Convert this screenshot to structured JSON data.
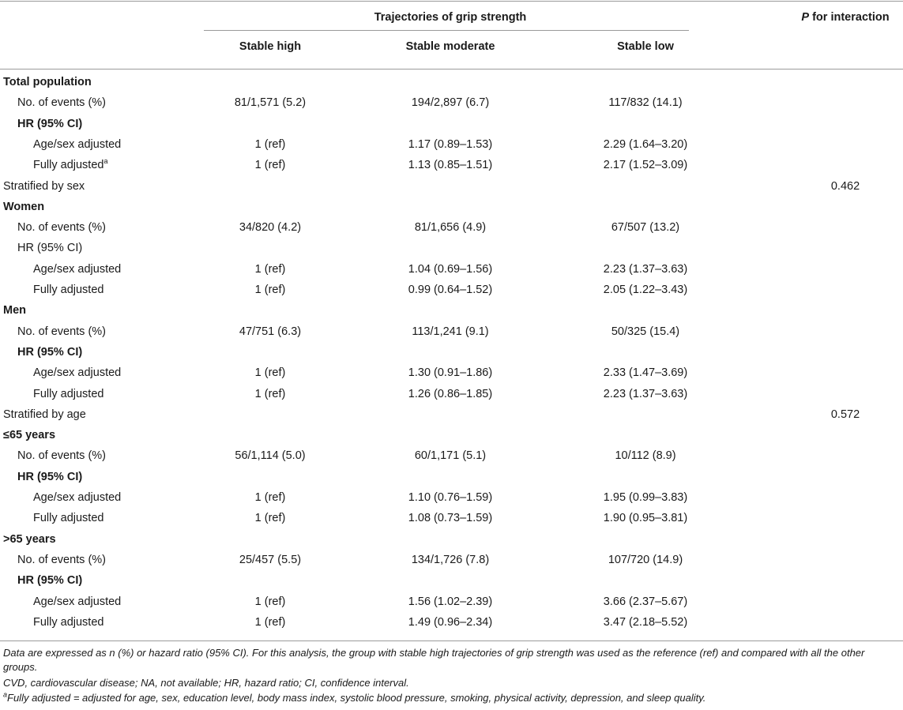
{
  "header": {
    "group_title": "Trajectories of grip strength",
    "p_interaction": "P for interaction",
    "columns": [
      "Stable high",
      "Stable moderate",
      "Stable low"
    ]
  },
  "rows": [
    {
      "label": "Total population",
      "indent": 0,
      "bold": true,
      "v": [
        "",
        "",
        "",
        ""
      ]
    },
    {
      "label": "No. of events (%)",
      "indent": 1,
      "bold": false,
      "v": [
        "81/1,571 (5.2)",
        "194/2,897 (6.7)",
        "117/832 (14.1)",
        ""
      ]
    },
    {
      "label": "HR (95% CI)",
      "indent": 1,
      "bold": true,
      "v": [
        "",
        "",
        "",
        ""
      ]
    },
    {
      "label": "Age/sex adjusted",
      "indent": 2,
      "bold": false,
      "v": [
        "1 (ref)",
        "1.17 (0.89–1.53)",
        "2.29 (1.64–3.20)",
        ""
      ]
    },
    {
      "label": "Fully adjusted",
      "sup": "a",
      "indent": 2,
      "bold": false,
      "v": [
        "1 (ref)",
        "1.13 (0.85–1.51)",
        "2.17 (1.52–3.09)",
        ""
      ]
    },
    {
      "label": "Stratified by sex",
      "indent": 0,
      "bold": false,
      "v": [
        "",
        "",
        "",
        "0.462"
      ]
    },
    {
      "label": "Women",
      "indent": 0,
      "bold": true,
      "v": [
        "",
        "",
        "",
        ""
      ]
    },
    {
      "label": "No. of events (%)",
      "indent": 1,
      "bold": false,
      "v": [
        "34/820 (4.2)",
        "81/1,656 (4.9)",
        "67/507 (13.2)",
        ""
      ]
    },
    {
      "label": "HR (95% CI)",
      "indent": 1,
      "bold": false,
      "v": [
        "",
        "",
        "",
        ""
      ]
    },
    {
      "label": "Age/sex adjusted",
      "indent": 2,
      "bold": false,
      "v": [
        "1 (ref)",
        "1.04 (0.69–1.56)",
        "2.23 (1.37–3.63)",
        ""
      ]
    },
    {
      "label": "Fully adjusted",
      "indent": 2,
      "bold": false,
      "v": [
        "1 (ref)",
        "0.99 (0.64–1.52)",
        "2.05 (1.22–3.43)",
        ""
      ]
    },
    {
      "label": "Men",
      "indent": 0,
      "bold": true,
      "v": [
        "",
        "",
        "",
        ""
      ]
    },
    {
      "label": "No. of events (%)",
      "indent": 1,
      "bold": false,
      "v": [
        "47/751 (6.3)",
        "113/1,241 (9.1)",
        "50/325 (15.4)",
        ""
      ]
    },
    {
      "label": "HR (95% CI)",
      "indent": 1,
      "bold": true,
      "v": [
        "",
        "",
        "",
        ""
      ]
    },
    {
      "label": "Age/sex adjusted",
      "indent": 2,
      "bold": false,
      "v": [
        "1 (ref)",
        "1.30 (0.91–1.86)",
        "2.33 (1.47–3.69)",
        ""
      ]
    },
    {
      "label": "Fully adjusted",
      "indent": 2,
      "bold": false,
      "v": [
        "1 (ref)",
        "1.26 (0.86–1.85)",
        "2.23 (1.37–3.63)",
        ""
      ]
    },
    {
      "label": "Stratified by age",
      "indent": 0,
      "bold": false,
      "v": [
        "",
        "",
        "",
        "0.572"
      ]
    },
    {
      "label": "≤65 years",
      "indent": 0,
      "bold": true,
      "v": [
        "",
        "",
        "",
        ""
      ]
    },
    {
      "label": "No. of events (%)",
      "indent": 1,
      "bold": false,
      "v": [
        "56/1,114 (5.0)",
        "60/1,171 (5.1)",
        "10/112 (8.9)",
        ""
      ]
    },
    {
      "label": "HR (95% CI)",
      "indent": 1,
      "bold": true,
      "v": [
        "",
        "",
        "",
        ""
      ]
    },
    {
      "label": "Age/sex adjusted",
      "indent": 2,
      "bold": false,
      "v": [
        "1 (ref)",
        "1.10 (0.76–1.59)",
        "1.95 (0.99–3.83)",
        ""
      ]
    },
    {
      "label": "Fully adjusted",
      "indent": 2,
      "bold": false,
      "v": [
        "1 (ref)",
        "1.08 (0.73–1.59)",
        "1.90 (0.95–3.81)",
        ""
      ]
    },
    {
      "label": ">65 years",
      "indent": 0,
      "bold": true,
      "v": [
        "",
        "",
        "",
        ""
      ]
    },
    {
      "label": "No. of events (%)",
      "indent": 1,
      "bold": false,
      "v": [
        "25/457 (5.5)",
        "134/1,726 (7.8)",
        "107/720 (14.9)",
        ""
      ]
    },
    {
      "label": "HR (95% CI)",
      "indent": 1,
      "bold": true,
      "v": [
        "",
        "",
        "",
        ""
      ]
    },
    {
      "label": "Age/sex adjusted",
      "indent": 2,
      "bold": false,
      "v": [
        "1 (ref)",
        "1.56 (1.02–2.39)",
        "3.66 (2.37–5.67)",
        ""
      ]
    },
    {
      "label": "Fully adjusted",
      "indent": 2,
      "bold": false,
      "v": [
        "1 (ref)",
        "1.49 (0.96–2.34)",
        "3.47 (2.18–5.52)",
        ""
      ]
    }
  ],
  "footnotes": [
    "Data are expressed as n (%) or hazard ratio (95% CI). For this analysis, the group with stable high trajectories of grip strength was used as the reference (ref) and compared with all the other groups.",
    "CVD, cardiovascular disease; NA, not available; HR, hazard ratio; CI, confidence interval.",
    "Fully adjusted = adjusted for age, sex, education level, body mass index, systolic blood pressure, smoking, physical activity, depression, and sleep quality."
  ],
  "footnote_sup": "a"
}
